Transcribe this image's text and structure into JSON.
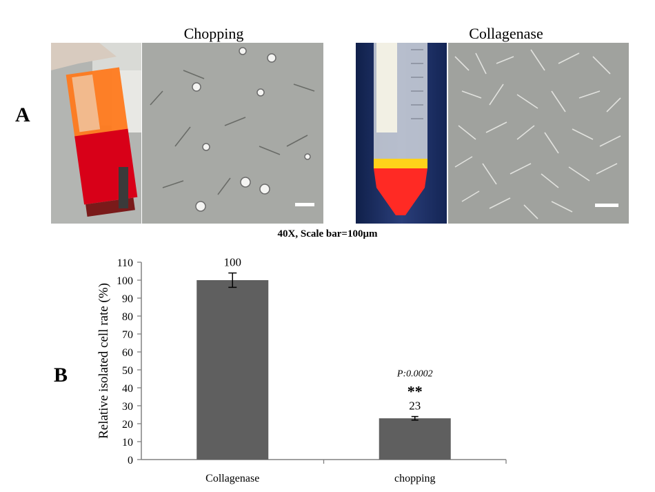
{
  "panel_a": {
    "letter": "A",
    "left_title": "Chopping",
    "right_title": "Collagenase",
    "caption": "40X, Scale bar=100μm"
  },
  "panel_b": {
    "letter": "B"
  },
  "chart_data": {
    "type": "bar",
    "categories": [
      "Collagenase",
      "chopping"
    ],
    "values": [
      100,
      23
    ],
    "errors": [
      4,
      1
    ],
    "data_labels": [
      "100",
      "23"
    ],
    "annotations": {
      "significance": "**",
      "p_value": "P:0.0002"
    },
    "ylabel": "Relative isolated cell  rate (%)",
    "xlabel": "",
    "ylim": [
      0,
      110
    ],
    "yticks": [
      0,
      10,
      20,
      30,
      40,
      50,
      60,
      70,
      80,
      90,
      100,
      110
    ],
    "grid": false,
    "legend": "none",
    "colors": {
      "bar": "#5f5f5f",
      "axis": "#808080"
    }
  }
}
